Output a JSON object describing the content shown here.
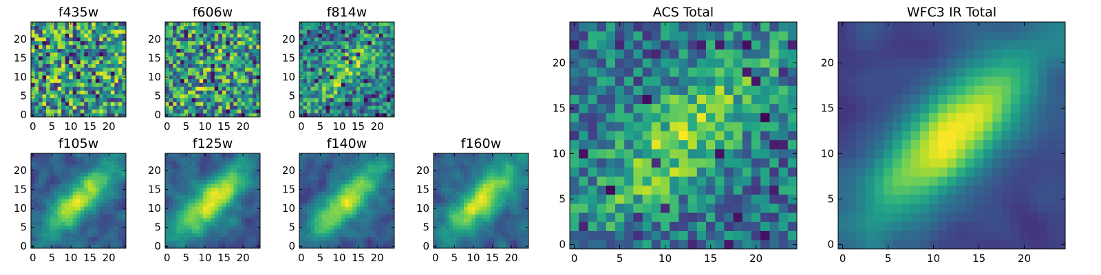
{
  "chart_data": [
    {
      "id": "f435w",
      "type": "heatmap",
      "title": "f435w",
      "grid_size": 25,
      "colormap": "viridis",
      "xticks": [
        "0",
        "5",
        "10",
        "15",
        "20"
      ],
      "yticks": [
        "0",
        "5",
        "10",
        "15",
        "20"
      ],
      "xlim": [
        -0.5,
        24.5
      ],
      "ylim": [
        -0.5,
        24.5
      ],
      "seed": 11,
      "blob_strength": 0.05,
      "noise": 0.85,
      "smooth": 0,
      "dark_freq": 0.06
    },
    {
      "id": "f606w",
      "type": "heatmap",
      "title": "f606w",
      "grid_size": 25,
      "colormap": "viridis",
      "xticks": [
        "0",
        "5",
        "10",
        "15",
        "20"
      ],
      "yticks": [
        "0",
        "5",
        "10",
        "15",
        "20"
      ],
      "xlim": [
        -0.5,
        24.5
      ],
      "ylim": [
        -0.5,
        24.5
      ],
      "seed": 23,
      "blob_strength": 0.12,
      "noise": 0.8,
      "smooth": 0,
      "dark_freq": 0.05
    },
    {
      "id": "f814w",
      "type": "heatmap",
      "title": "f814w",
      "grid_size": 25,
      "colormap": "viridis",
      "xticks": [
        "0",
        "5",
        "10",
        "15",
        "20"
      ],
      "yticks": [
        "0",
        "5",
        "10",
        "15",
        "20"
      ],
      "xlim": [
        -0.5,
        24.5
      ],
      "ylim": [
        -0.5,
        24.5
      ],
      "seed": 37,
      "blob_strength": 0.35,
      "noise": 0.65,
      "smooth": 0,
      "dark_freq": 0.05
    },
    {
      "id": "f105w",
      "type": "heatmap",
      "title": "f105w",
      "grid_size": 25,
      "colormap": "viridis",
      "xticks": [
        "0",
        "5",
        "10",
        "15",
        "20"
      ],
      "yticks": [
        "0",
        "5",
        "10",
        "15",
        "20"
      ],
      "xlim": [
        -0.5,
        24.5
      ],
      "ylim": [
        -0.5,
        24.5
      ],
      "seed": 41,
      "blob_strength": 0.7,
      "noise": 0.55,
      "smooth": 1,
      "dark_freq": 0.0
    },
    {
      "id": "f125w",
      "type": "heatmap",
      "title": "f125w",
      "grid_size": 25,
      "colormap": "viridis",
      "xticks": [
        "0",
        "5",
        "10",
        "15",
        "20"
      ],
      "yticks": [
        "0",
        "5",
        "10",
        "15",
        "20"
      ],
      "xlim": [
        -0.5,
        24.5
      ],
      "ylim": [
        -0.5,
        24.5
      ],
      "seed": 53,
      "blob_strength": 0.7,
      "noise": 0.5,
      "smooth": 1,
      "dark_freq": 0.0
    },
    {
      "id": "f140w",
      "type": "heatmap",
      "title": "f140w",
      "grid_size": 25,
      "colormap": "viridis",
      "xticks": [
        "0",
        "5",
        "10",
        "15",
        "20"
      ],
      "yticks": [
        "0",
        "5",
        "10",
        "15",
        "20"
      ],
      "xlim": [
        -0.5,
        24.5
      ],
      "ylim": [
        -0.5,
        24.5
      ],
      "seed": 67,
      "blob_strength": 0.7,
      "noise": 0.55,
      "smooth": 1,
      "dark_freq": 0.0
    },
    {
      "id": "f160w",
      "type": "heatmap",
      "title": "f160w",
      "grid_size": 25,
      "colormap": "viridis",
      "xticks": [
        "0",
        "5",
        "10",
        "15",
        "20"
      ],
      "yticks": [
        "0",
        "5",
        "10",
        "15",
        "20"
      ],
      "xlim": [
        -0.5,
        24.5
      ],
      "ylim": [
        -0.5,
        24.5
      ],
      "seed": 79,
      "blob_strength": 0.75,
      "noise": 0.55,
      "smooth": 1,
      "dark_freq": 0.0
    },
    {
      "id": "acs-total",
      "type": "heatmap",
      "title": "ACS Total",
      "grid_size": 25,
      "colormap": "viridis",
      "xticks": [
        "0",
        "5",
        "10",
        "15",
        "20"
      ],
      "yticks": [
        "0",
        "5",
        "10",
        "15",
        "20"
      ],
      "xlim": [
        -0.5,
        24.5
      ],
      "ylim": [
        -0.5,
        24.5
      ],
      "seed": 97,
      "blob_strength": 0.45,
      "noise": 0.55,
      "smooth": 0,
      "dark_freq": 0.03
    },
    {
      "id": "wfc3-ir-total",
      "type": "heatmap",
      "title": "WFC3 IR Total",
      "grid_size": 25,
      "colormap": "viridis",
      "xticks": [
        "0",
        "5",
        "10",
        "15",
        "20"
      ],
      "yticks": [
        "0",
        "5",
        "10",
        "15",
        "20"
      ],
      "xlim": [
        -0.5,
        24.5
      ],
      "ylim": [
        -0.5,
        24.5
      ],
      "seed": 113,
      "blob_strength": 0.85,
      "noise": 0.35,
      "smooth": 2,
      "dark_freq": 0.0
    }
  ],
  "colors": {
    "viridis_stops": [
      "#440154",
      "#482878",
      "#3e4989",
      "#31688e",
      "#26828e",
      "#1f9e89",
      "#35b779",
      "#6ece58",
      "#b5de2b",
      "#fde725"
    ],
    "frame": "#000000",
    "background": "#ffffff"
  }
}
